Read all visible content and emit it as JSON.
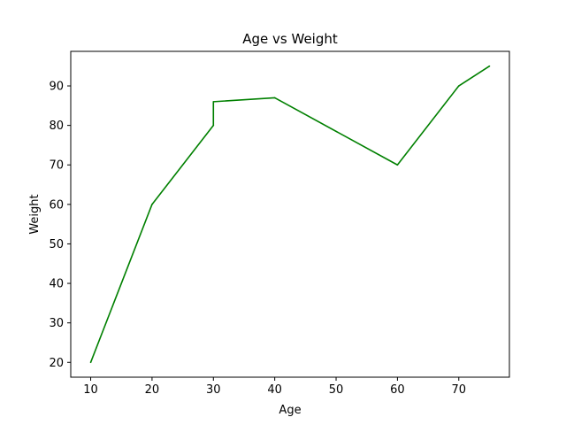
{
  "chart_data": {
    "type": "line",
    "title": "Age vs Weight",
    "xlabel": "Age",
    "ylabel": "Weight",
    "xlim": [
      6.75,
      78.25
    ],
    "ylim": [
      16.25,
      98.75
    ],
    "xticks": [
      10,
      20,
      30,
      40,
      50,
      60,
      70
    ],
    "yticks": [
      20,
      30,
      40,
      50,
      60,
      70,
      80,
      90
    ],
    "grid": false,
    "legend": "none",
    "series": [
      {
        "color": "#008000",
        "x": [
          10,
          20,
          30,
          30,
          40,
          60,
          70,
          75
        ],
        "y": [
          20,
          60,
          80,
          86,
          87,
          70,
          90,
          95
        ]
      }
    ]
  }
}
